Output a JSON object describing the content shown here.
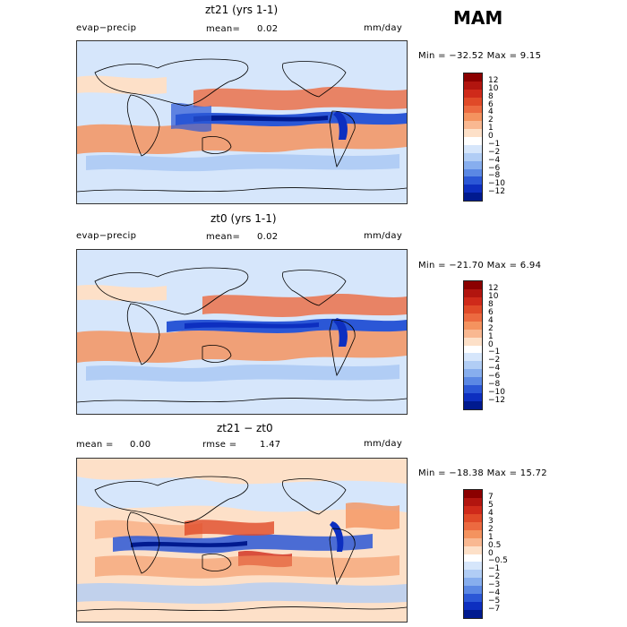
{
  "season": "MAM",
  "panels": [
    {
      "title": "zt21 (yrs 1-1)",
      "left_label": "evap−precip",
      "mean_label": "mean=",
      "mean_value": "0.02",
      "units": "mm/day",
      "minmax": "Min = −32.52  Max =    9.15",
      "colorbar": {
        "levels": [
          "12",
          "10",
          "8",
          "6",
          "4",
          "2",
          "1",
          "0",
          "−1",
          "−2",
          "−4",
          "−6",
          "−8",
          "−10",
          "−12"
        ],
        "colors": [
          "#8b0000",
          "#b2150f",
          "#cf2a1a",
          "#e04a28",
          "#ec6a40",
          "#f4935f",
          "#f9b891",
          "#fde0c8",
          "#ffffff",
          "#d6e6fb",
          "#b1cdf5",
          "#87aeee",
          "#5b88e4",
          "#2b57d6",
          "#0d2fc0",
          "#001a8f"
        ]
      }
    },
    {
      "title": "zt0 (yrs 1-1)",
      "left_label": "evap−precip",
      "mean_label": "mean=",
      "mean_value": "0.02",
      "units": "mm/day",
      "minmax": "Min = −21.70  Max =    6.94",
      "colorbar": {
        "levels": [
          "12",
          "10",
          "8",
          "6",
          "4",
          "2",
          "1",
          "0",
          "−1",
          "−2",
          "−4",
          "−6",
          "−8",
          "−10",
          "−12"
        ],
        "colors": [
          "#8b0000",
          "#b2150f",
          "#cf2a1a",
          "#e04a28",
          "#ec6a40",
          "#f4935f",
          "#f9b891",
          "#fde0c8",
          "#ffffff",
          "#d6e6fb",
          "#b1cdf5",
          "#87aeee",
          "#5b88e4",
          "#2b57d6",
          "#0d2fc0",
          "#001a8f"
        ]
      }
    },
    {
      "title": "zt21 − zt0",
      "mean_label": "mean =",
      "mean_value": "0.00",
      "rmse_label": "rmse =",
      "rmse_value": "1.47",
      "units": "mm/day",
      "minmax": "Min = −18.38  Max =   15.72",
      "colorbar": {
        "levels": [
          "7",
          "5",
          "4",
          "3",
          "2",
          "1",
          "0.5",
          "0",
          "−0.5",
          "−1",
          "−2",
          "−3",
          "−4",
          "−5",
          "−7"
        ],
        "colors": [
          "#8b0000",
          "#b2150f",
          "#cf2a1a",
          "#e04a28",
          "#ec6a40",
          "#f4935f",
          "#f9b891",
          "#fde0c8",
          "#ffffff",
          "#d6e6fb",
          "#b1cdf5",
          "#87aeee",
          "#5b88e4",
          "#2b57d6",
          "#0d2fc0",
          "#001a8f"
        ]
      }
    }
  ]
}
